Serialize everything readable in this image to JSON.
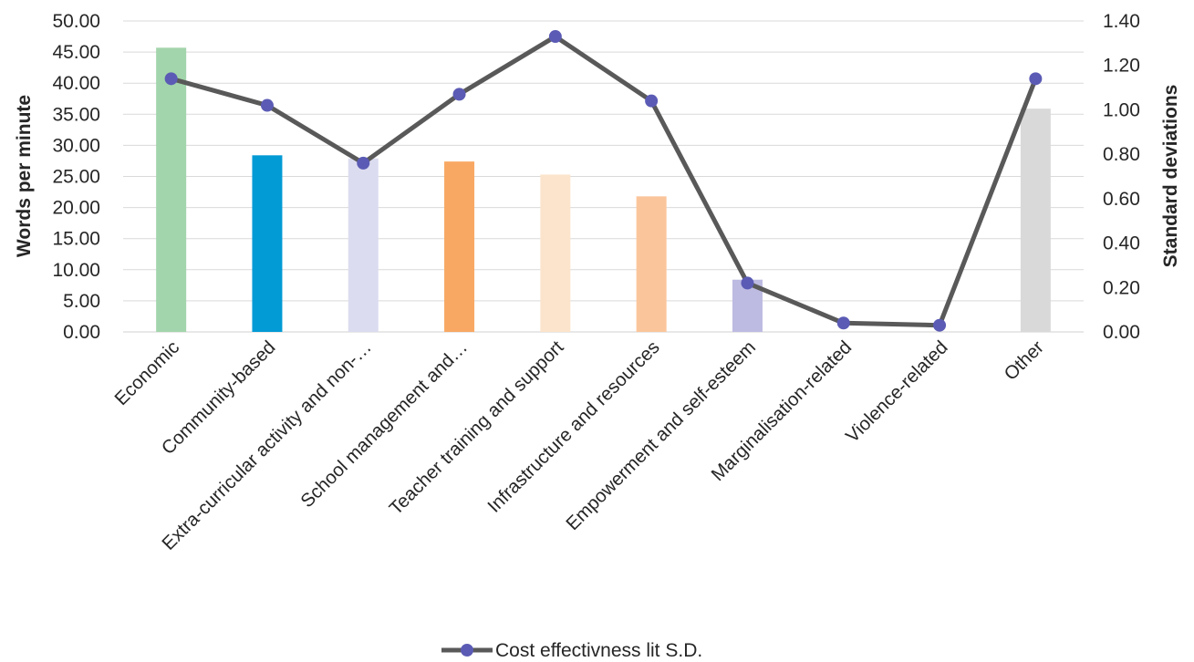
{
  "chart_data": {
    "type": "bar+line",
    "categories": [
      "Economic",
      "Community-based",
      "Extra-curricular activity and non-…",
      "School management and…",
      "Teacher training and support",
      "Infrastructure and resources",
      "Empowerment and self-esteem",
      "Marginalisation-related",
      "Violence-related",
      "Other"
    ],
    "bar_series": {
      "values": [
        45.7,
        28.4,
        27.9,
        27.4,
        25.3,
        21.8,
        8.4,
        0,
        0,
        35.9
      ],
      "colors": [
        "#a2d5ab",
        "#039bd5",
        "#dcdcf0",
        "#f8a863",
        "#fce4cc",
        "#fbc59b",
        "#bdbbe2",
        "#ffffff",
        "#ffffff",
        "#d9d9d9"
      ]
    },
    "line_series": {
      "name": "Cost effectivness lit S.D.",
      "values": [
        1.14,
        1.02,
        0.76,
        1.07,
        1.33,
        1.04,
        0.22,
        0.04,
        0.03,
        1.14
      ],
      "line_color": "#595959",
      "marker_color": "#5b5bb5"
    },
    "y_left": {
      "label": "Words per minute",
      "lim": [
        0,
        50
      ],
      "ticks": [
        "0.00",
        "5.00",
        "10.00",
        "15.00",
        "20.00",
        "25.00",
        "30.00",
        "35.00",
        "40.00",
        "45.00",
        "50.00"
      ]
    },
    "y_right": {
      "label": "Standard deviations",
      "lim": [
        0,
        1.4
      ],
      "ticks": [
        "0.00",
        "0.20",
        "0.40",
        "0.60",
        "0.80",
        "1.00",
        "1.20",
        "1.40"
      ]
    },
    "grid": true,
    "legend_position": "bottom-center"
  }
}
